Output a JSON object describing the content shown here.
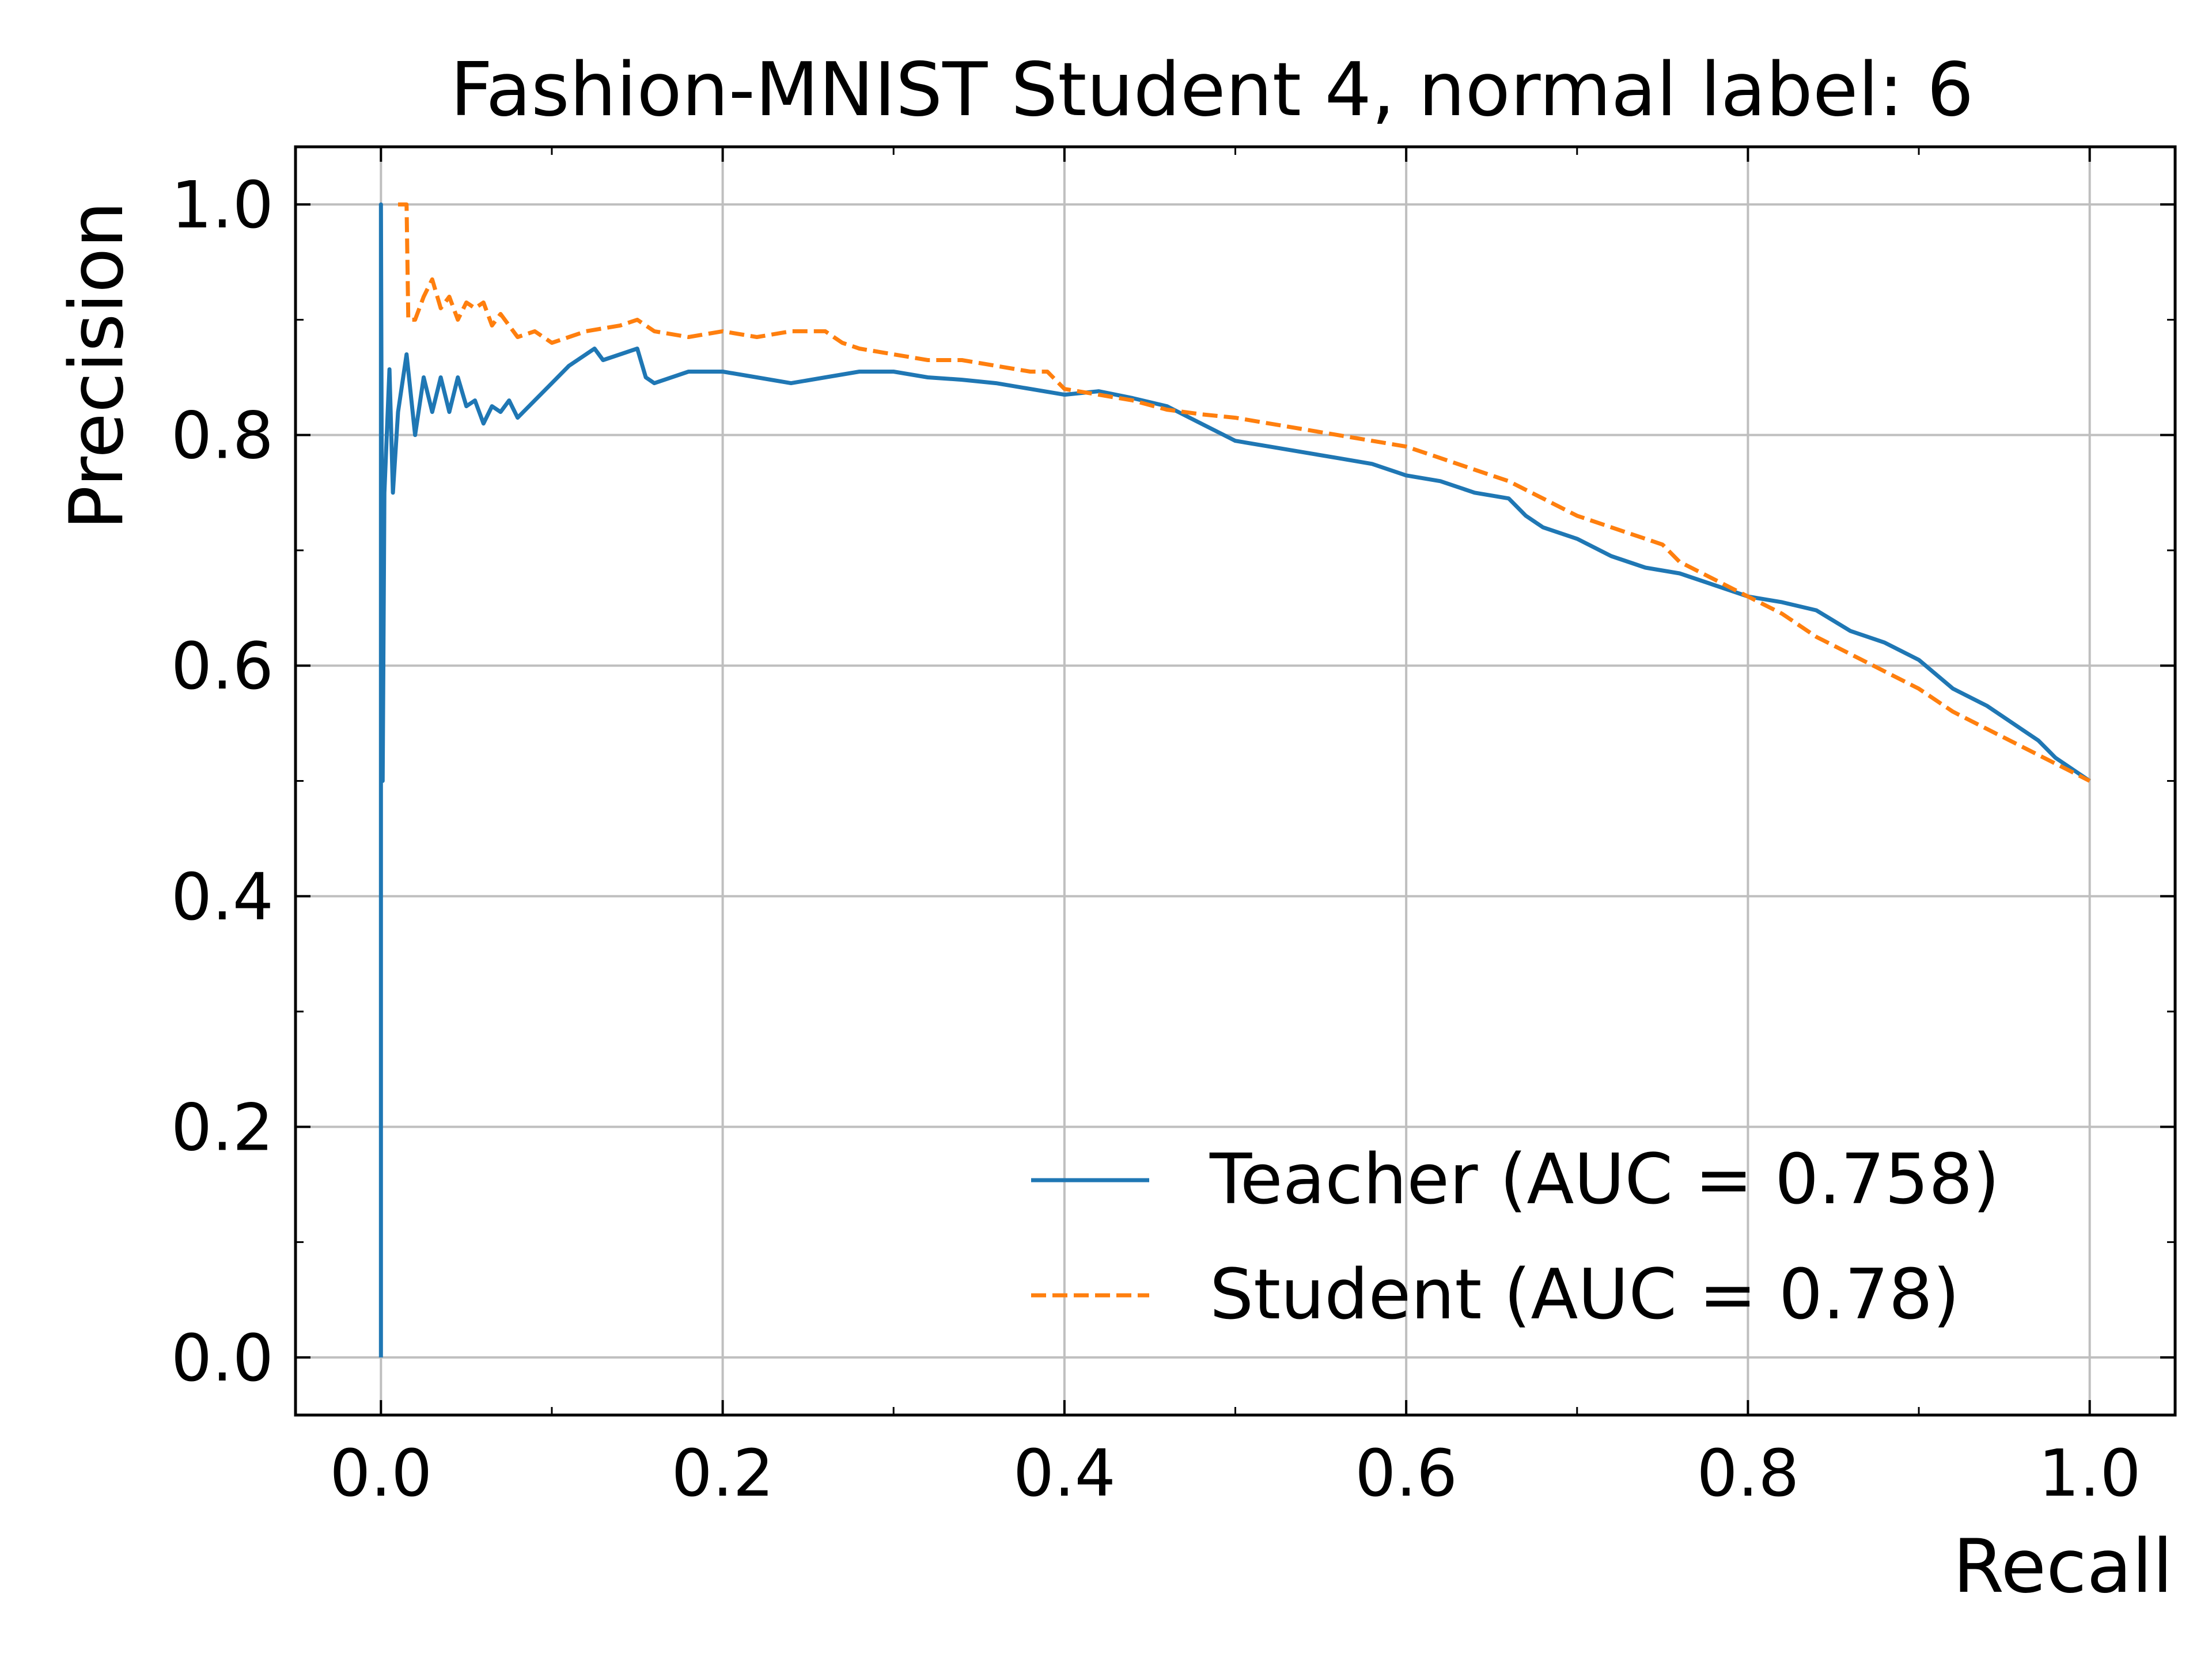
{
  "chart_data": {
    "type": "line",
    "title": "Fashion-MNIST Student 4, normal label: 6",
    "xlabel": "Recall",
    "ylabel": "Precision",
    "xlim": [
      -0.05,
      1.05
    ],
    "ylim": [
      -0.05,
      1.05
    ],
    "xticks": [
      0.0,
      0.2,
      0.4,
      0.6,
      0.8,
      1.0
    ],
    "xtick_labels": [
      "0.0",
      "0.2",
      "0.4",
      "0.6",
      "0.8",
      "1.0"
    ],
    "yticks": [
      0.0,
      0.2,
      0.4,
      0.6,
      0.8,
      1.0
    ],
    "ytick_labels": [
      "0.0",
      "0.2",
      "0.4",
      "0.6",
      "0.8",
      "1.0"
    ],
    "grid": true,
    "legend_position": "lower-right",
    "series": [
      {
        "name": "Teacher (AUC = 0.758)",
        "color": "#1f77b4",
        "style": "solid",
        "points": [
          [
            0.0,
            0.0
          ],
          [
            0.0,
            1.0
          ],
          [
            0.001,
            0.5
          ],
          [
            0.002,
            0.75
          ],
          [
            0.005,
            0.857
          ],
          [
            0.007,
            0.75
          ],
          [
            0.01,
            0.82
          ],
          [
            0.015,
            0.87
          ],
          [
            0.02,
            0.8
          ],
          [
            0.025,
            0.85
          ],
          [
            0.03,
            0.82
          ],
          [
            0.035,
            0.85
          ],
          [
            0.04,
            0.82
          ],
          [
            0.045,
            0.85
          ],
          [
            0.05,
            0.825
          ],
          [
            0.055,
            0.83
          ],
          [
            0.06,
            0.81
          ],
          [
            0.065,
            0.825
          ],
          [
            0.07,
            0.82
          ],
          [
            0.075,
            0.83
          ],
          [
            0.08,
            0.815
          ],
          [
            0.09,
            0.83
          ],
          [
            0.1,
            0.845
          ],
          [
            0.11,
            0.86
          ],
          [
            0.12,
            0.87
          ],
          [
            0.125,
            0.875
          ],
          [
            0.13,
            0.865
          ],
          [
            0.14,
            0.87
          ],
          [
            0.15,
            0.875
          ],
          [
            0.155,
            0.85
          ],
          [
            0.16,
            0.845
          ],
          [
            0.18,
            0.855
          ],
          [
            0.2,
            0.855
          ],
          [
            0.22,
            0.85
          ],
          [
            0.24,
            0.845
          ],
          [
            0.26,
            0.85
          ],
          [
            0.28,
            0.855
          ],
          [
            0.3,
            0.855
          ],
          [
            0.32,
            0.85
          ],
          [
            0.34,
            0.848
          ],
          [
            0.36,
            0.845
          ],
          [
            0.38,
            0.84
          ],
          [
            0.4,
            0.835
          ],
          [
            0.42,
            0.838
          ],
          [
            0.44,
            0.832
          ],
          [
            0.46,
            0.825
          ],
          [
            0.48,
            0.81
          ],
          [
            0.5,
            0.795
          ],
          [
            0.52,
            0.79
          ],
          [
            0.54,
            0.785
          ],
          [
            0.56,
            0.78
          ],
          [
            0.58,
            0.775
          ],
          [
            0.6,
            0.765
          ],
          [
            0.62,
            0.76
          ],
          [
            0.64,
            0.75
          ],
          [
            0.66,
            0.745
          ],
          [
            0.67,
            0.73
          ],
          [
            0.68,
            0.72
          ],
          [
            0.7,
            0.71
          ],
          [
            0.72,
            0.695
          ],
          [
            0.74,
            0.685
          ],
          [
            0.76,
            0.68
          ],
          [
            0.78,
            0.67
          ],
          [
            0.8,
            0.66
          ],
          [
            0.82,
            0.655
          ],
          [
            0.84,
            0.648
          ],
          [
            0.86,
            0.63
          ],
          [
            0.88,
            0.62
          ],
          [
            0.9,
            0.605
          ],
          [
            0.92,
            0.58
          ],
          [
            0.94,
            0.565
          ],
          [
            0.96,
            0.545
          ],
          [
            0.97,
            0.535
          ],
          [
            0.98,
            0.52
          ],
          [
            1.0,
            0.5
          ]
        ]
      },
      {
        "name": "Student (AUC = 0.78)",
        "color": "#ff7f0e",
        "style": "dashed",
        "points": [
          [
            0.01,
            1.0
          ],
          [
            0.015,
            1.0
          ],
          [
            0.016,
            0.9
          ],
          [
            0.02,
            0.9
          ],
          [
            0.025,
            0.92
          ],
          [
            0.03,
            0.935
          ],
          [
            0.035,
            0.91
          ],
          [
            0.04,
            0.92
          ],
          [
            0.045,
            0.9
          ],
          [
            0.05,
            0.915
          ],
          [
            0.055,
            0.91
          ],
          [
            0.06,
            0.915
          ],
          [
            0.065,
            0.895
          ],
          [
            0.07,
            0.905
          ],
          [
            0.08,
            0.885
          ],
          [
            0.09,
            0.89
          ],
          [
            0.1,
            0.88
          ],
          [
            0.11,
            0.885
          ],
          [
            0.12,
            0.89
          ],
          [
            0.14,
            0.895
          ],
          [
            0.15,
            0.9
          ],
          [
            0.16,
            0.89
          ],
          [
            0.18,
            0.885
          ],
          [
            0.2,
            0.89
          ],
          [
            0.22,
            0.885
          ],
          [
            0.24,
            0.89
          ],
          [
            0.26,
            0.89
          ],
          [
            0.27,
            0.88
          ],
          [
            0.28,
            0.875
          ],
          [
            0.3,
            0.87
          ],
          [
            0.32,
            0.865
          ],
          [
            0.34,
            0.865
          ],
          [
            0.36,
            0.86
          ],
          [
            0.38,
            0.855
          ],
          [
            0.39,
            0.855
          ],
          [
            0.4,
            0.84
          ],
          [
            0.42,
            0.835
          ],
          [
            0.44,
            0.83
          ],
          [
            0.46,
            0.822
          ],
          [
            0.48,
            0.818
          ],
          [
            0.5,
            0.815
          ],
          [
            0.52,
            0.81
          ],
          [
            0.54,
            0.805
          ],
          [
            0.56,
            0.8
          ],
          [
            0.58,
            0.795
          ],
          [
            0.6,
            0.79
          ],
          [
            0.62,
            0.78
          ],
          [
            0.64,
            0.77
          ],
          [
            0.66,
            0.76
          ],
          [
            0.68,
            0.745
          ],
          [
            0.7,
            0.73
          ],
          [
            0.72,
            0.72
          ],
          [
            0.74,
            0.71
          ],
          [
            0.75,
            0.705
          ],
          [
            0.76,
            0.69
          ],
          [
            0.78,
            0.675
          ],
          [
            0.8,
            0.66
          ],
          [
            0.82,
            0.645
          ],
          [
            0.84,
            0.625
          ],
          [
            0.86,
            0.61
          ],
          [
            0.88,
            0.595
          ],
          [
            0.9,
            0.58
          ],
          [
            0.92,
            0.56
          ],
          [
            0.94,
            0.545
          ],
          [
            0.96,
            0.53
          ],
          [
            0.98,
            0.515
          ],
          [
            1.0,
            0.5
          ]
        ]
      }
    ]
  }
}
